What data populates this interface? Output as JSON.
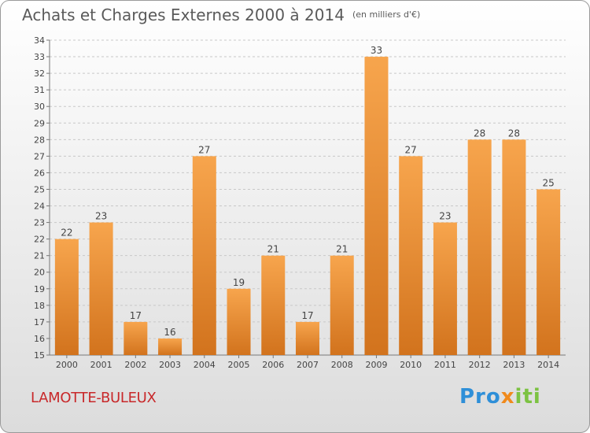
{
  "title": "Achats et Charges Externes 2000 à 2014",
  "unit_label": "(en milliers d'€)",
  "place": "LAMOTTE-BULEUX",
  "brand": "Proxiti",
  "colors": {
    "bar_top": "#f7a54d",
    "bar_bottom": "#d2731d",
    "text": "#444444",
    "place": "#c8282a"
  },
  "chart_data": {
    "type": "bar",
    "categories": [
      "2000",
      "2001",
      "2002",
      "2003",
      "2004",
      "2005",
      "2006",
      "2007",
      "2008",
      "2009",
      "2010",
      "2011",
      "2012",
      "2013",
      "2014"
    ],
    "values": [
      22,
      23,
      17,
      16,
      27,
      19,
      21,
      17,
      21,
      33,
      27,
      23,
      28,
      28,
      25
    ],
    "ylim": [
      15,
      34
    ],
    "yticks": [
      15,
      16,
      17,
      18,
      19,
      20,
      21,
      22,
      23,
      24,
      25,
      26,
      27,
      28,
      29,
      30,
      31,
      32,
      33,
      34
    ],
    "grid": true,
    "data_labels": true
  }
}
